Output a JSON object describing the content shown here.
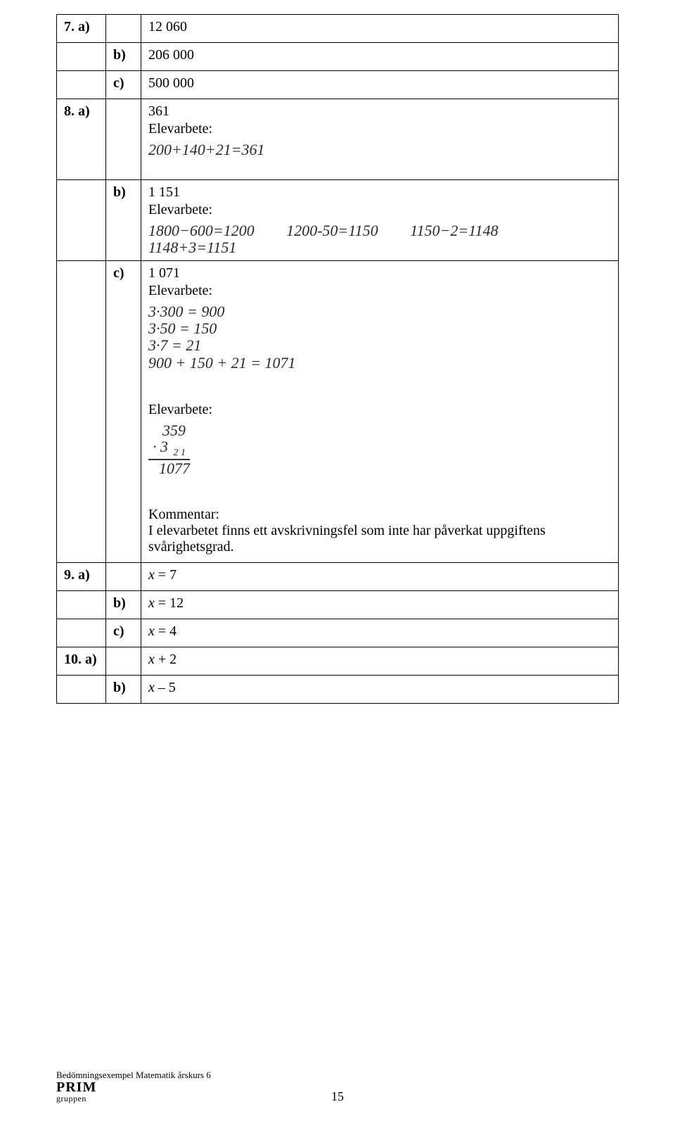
{
  "labels": {
    "elevarbete": "Elevarbete:",
    "kommentar": "Kommentar:"
  },
  "rows": {
    "r7a_q": "7. a)",
    "r7a_v": "12 060",
    "r7b_s": "b)",
    "r7b_v": "206 000",
    "r7c_s": "c)",
    "r7c_v": "500 000",
    "r8a_q": "8. a)",
    "r8a_v": "361",
    "r8a_hw": "200+140+21=361",
    "r8b_s": "b)",
    "r8b_v": "1 151",
    "r8b_hw1": "1800−600=1200",
    "r8b_hw2": "1200-50=1150",
    "r8b_hw3": "1150−2=1148",
    "r8b_hw4": "1148+3=1151",
    "r8c_s": "c)",
    "r8c_v": "1 071",
    "r8c_hwA1": "3·300 = 900",
    "r8c_hwA2": "3·50 = 150",
    "r8c_hwA3": "3·7 = 21",
    "r8c_hwA4": "900 + 150 + 21 = 1071",
    "r8c_hwB_top": "359",
    "r8c_hwB_mul": "·  3",
    "r8c_hwB_carry": "2 1",
    "r8c_hwB_res": "1077",
    "r8c_comment": "I elevarbetet finns ett avskrivningsfel som inte har påverkat uppgiftens svårighetsgrad.",
    "r9a_q": "9. a)",
    "r9a_v_pre": "x",
    "r9a_v_post": " = 7",
    "r9b_s": "b)",
    "r9b_v_pre": "x",
    "r9b_v_post": " = 12",
    "r9c_s": "c)",
    "r9c_v_pre": "x",
    "r9c_v_post": " = 4",
    "r10a_q": "10. a)",
    "r10a_v_pre": "x",
    "r10a_v_post": " + 2",
    "r10b_s": "b)",
    "r10b_v_pre": "x",
    "r10b_v_post": " – 5"
  },
  "footer": {
    "caption": "Bedömningsexempel Matematik årskurs 6",
    "brand_top": "PRIM",
    "brand_bottom": "gruppen",
    "page": "15"
  },
  "colors": {
    "border": "#000000",
    "text": "#000000",
    "handwriting": "#2a2a2a",
    "background": "#ffffff"
  },
  "fontsizes": {
    "body_pt": 15,
    "handwriting_pt": 16,
    "footer_caption_pt": 10,
    "page_num_pt": 14
  }
}
